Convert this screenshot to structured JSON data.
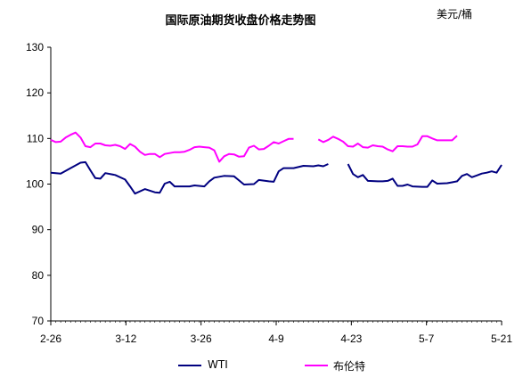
{
  "chart_data": {
    "type": "line",
    "title": "国际原油期货收盘价格走势图",
    "unit": "美元/桶",
    "ylim": [
      70,
      130
    ],
    "yticks": [
      70,
      80,
      90,
      100,
      110,
      120,
      130
    ],
    "xticks": [
      "2-26",
      "3-12",
      "3-26",
      "4-9",
      "4-23",
      "5-7",
      "5-21"
    ],
    "grid": false,
    "legend": "bottom",
    "series": [
      {
        "name": "WTI",
        "color": "#000080",
        "points": [
          [
            0,
            102.5
          ],
          [
            2,
            102.3
          ],
          [
            4,
            103.5
          ],
          [
            6,
            104.7
          ],
          [
            7,
            104.8
          ],
          [
            8,
            103
          ],
          [
            9,
            101.3
          ],
          [
            10,
            101.2
          ],
          [
            11,
            102.4
          ],
          [
            13,
            102.0
          ],
          [
            15,
            101.0
          ],
          [
            16,
            99.5
          ],
          [
            17,
            97.9
          ],
          [
            19,
            98.9
          ],
          [
            21,
            98.2
          ],
          [
            22,
            98.1
          ],
          [
            23,
            100.1
          ],
          [
            24,
            100.5
          ],
          [
            25,
            99.5
          ],
          [
            28,
            99.5
          ],
          [
            29,
            99.7
          ],
          [
            31,
            99.5
          ],
          [
            32,
            100.6
          ],
          [
            33,
            101.4
          ],
          [
            35,
            101.8
          ],
          [
            37,
            101.7
          ],
          [
            38,
            100.8
          ],
          [
            39,
            99.9
          ],
          [
            41,
            100.0
          ],
          [
            42,
            100.9
          ],
          [
            44,
            100.6
          ],
          [
            45,
            100.5
          ],
          [
            46,
            102.8
          ],
          [
            47,
            103.5
          ],
          [
            49,
            103.5
          ],
          [
            51,
            104.0
          ],
          [
            53,
            103.9
          ],
          [
            54,
            104.1
          ],
          [
            55,
            103.9
          ],
          [
            56,
            104.4
          ],
          null,
          [
            60,
            104.4
          ],
          [
            61,
            102.2
          ],
          [
            62,
            101.5
          ],
          [
            63,
            102.0
          ],
          [
            64,
            100.7
          ],
          [
            66,
            100.6
          ],
          [
            67,
            100.6
          ],
          [
            68,
            100.7
          ],
          [
            69,
            101.2
          ],
          [
            70,
            99.6
          ],
          [
            71,
            99.6
          ],
          [
            72,
            99.9
          ],
          [
            73,
            99.5
          ],
          [
            75,
            99.4
          ],
          [
            76,
            99.4
          ],
          [
            77,
            100.8
          ],
          [
            78,
            100.1
          ],
          [
            80,
            100.2
          ],
          [
            81,
            100.4
          ],
          [
            82,
            100.6
          ],
          [
            83,
            101.8
          ],
          [
            84,
            102.2
          ],
          [
            85,
            101.5
          ],
          [
            86,
            101.9
          ],
          [
            87,
            102.3
          ],
          [
            88,
            102.5
          ],
          [
            89,
            102.8
          ],
          [
            90,
            102.5
          ],
          [
            91,
            104.2
          ]
        ]
      },
      {
        "name": "布伦特",
        "color": "#ff00ff",
        "points": [
          [
            0,
            109.7
          ],
          [
            1,
            109.2
          ],
          [
            2,
            109.3
          ],
          [
            3,
            110.2
          ],
          [
            4,
            110.8
          ],
          [
            5,
            111.3
          ],
          [
            6,
            110.2
          ],
          [
            7,
            108.3
          ],
          [
            8,
            108.1
          ],
          [
            9,
            108.9
          ],
          [
            10,
            108.9
          ],
          [
            11,
            108.5
          ],
          [
            12,
            108.4
          ],
          [
            13,
            108.6
          ],
          [
            14,
            108.3
          ],
          [
            15,
            107.7
          ],
          [
            16,
            108.8
          ],
          [
            17,
            108.2
          ],
          [
            18,
            107.1
          ],
          [
            19,
            106.4
          ],
          [
            20,
            106.6
          ],
          [
            21,
            106.6
          ],
          [
            22,
            105.9
          ],
          [
            23,
            106.6
          ],
          [
            24,
            106.8
          ],
          [
            25,
            107.0
          ],
          [
            26,
            107.0
          ],
          [
            27,
            107.1
          ],
          [
            28,
            107.5
          ],
          [
            29,
            108.1
          ],
          [
            30,
            108.2
          ],
          [
            31,
            108.1
          ],
          [
            32,
            108.0
          ],
          [
            33,
            107.4
          ],
          [
            34,
            104.9
          ],
          [
            35,
            106.1
          ],
          [
            36,
            106.6
          ],
          [
            37,
            106.5
          ],
          [
            38,
            106.0
          ],
          [
            39,
            106.1
          ],
          [
            40,
            108.0
          ],
          [
            41,
            108.4
          ],
          [
            42,
            107.6
          ],
          [
            43,
            107.7
          ],
          [
            44,
            108.4
          ],
          [
            45,
            109.2
          ],
          [
            46,
            108.9
          ],
          [
            47,
            109.4
          ],
          [
            48,
            109.9
          ],
          [
            49,
            109.9
          ],
          null,
          [
            54,
            109.8
          ],
          [
            55,
            109.2
          ],
          [
            56,
            109.7
          ],
          [
            57,
            110.4
          ],
          [
            58,
            109.9
          ],
          [
            59,
            109.3
          ],
          [
            60,
            108.3
          ],
          [
            61,
            108.2
          ],
          [
            62,
            108.9
          ],
          [
            63,
            108.1
          ],
          [
            64,
            108.0
          ],
          [
            65,
            108.5
          ],
          [
            66,
            108.3
          ],
          [
            67,
            108.2
          ],
          [
            68,
            107.6
          ],
          [
            69,
            107.2
          ],
          [
            70,
            108.3
          ],
          [
            71,
            108.3
          ],
          [
            72,
            108.2
          ],
          [
            73,
            108.2
          ],
          [
            74,
            108.7
          ],
          [
            75,
            110.5
          ],
          [
            76,
            110.5
          ],
          [
            77,
            110.0
          ],
          [
            78,
            109.6
          ],
          [
            79,
            109.6
          ],
          [
            80,
            109.6
          ],
          [
            81,
            109.6
          ],
          [
            82,
            110.6
          ]
        ]
      }
    ]
  }
}
